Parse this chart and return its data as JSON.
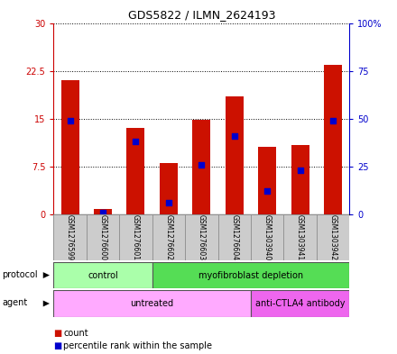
{
  "title": "GDS5822 / ILMN_2624193",
  "samples": [
    "GSM1276599",
    "GSM1276600",
    "GSM1276601",
    "GSM1276602",
    "GSM1276603",
    "GSM1276604",
    "GSM1303940",
    "GSM1303941",
    "GSM1303942"
  ],
  "count_values": [
    21.0,
    0.8,
    13.5,
    8.0,
    14.8,
    18.5,
    10.5,
    10.8,
    23.5
  ],
  "percentile_values": [
    49,
    1,
    38,
    6,
    26,
    41,
    12,
    23,
    49
  ],
  "ylim_left": [
    0,
    30
  ],
  "ylim_right": [
    0,
    100
  ],
  "yticks_left": [
    0,
    7.5,
    15,
    22.5,
    30
  ],
  "ytick_labels_left": [
    "0",
    "7.5",
    "15",
    "22.5",
    "30"
  ],
  "yticks_right": [
    0,
    25,
    50,
    75,
    100
  ],
  "ytick_labels_right": [
    "0",
    "25",
    "50",
    "75",
    "100%"
  ],
  "bar_color": "#cc1100",
  "dot_color": "#0000cc",
  "protocol_labels": [
    {
      "text": "control",
      "start": 0,
      "end": 3
    },
    {
      "text": "myofibroblast depletion",
      "start": 3,
      "end": 9
    }
  ],
  "protocol_colors": [
    "#aaffaa",
    "#55dd55"
  ],
  "agent_labels": [
    {
      "text": "untreated",
      "start": 0,
      "end": 6
    },
    {
      "text": "anti-CTLA4 antibody",
      "start": 6,
      "end": 9
    }
  ],
  "agent_colors": [
    "#ffaaff",
    "#ee66ee"
  ],
  "legend_count_color": "#cc1100",
  "legend_pct_color": "#0000cc",
  "bg_color": "#ffffff",
  "xticklabel_bg": "#cccccc"
}
